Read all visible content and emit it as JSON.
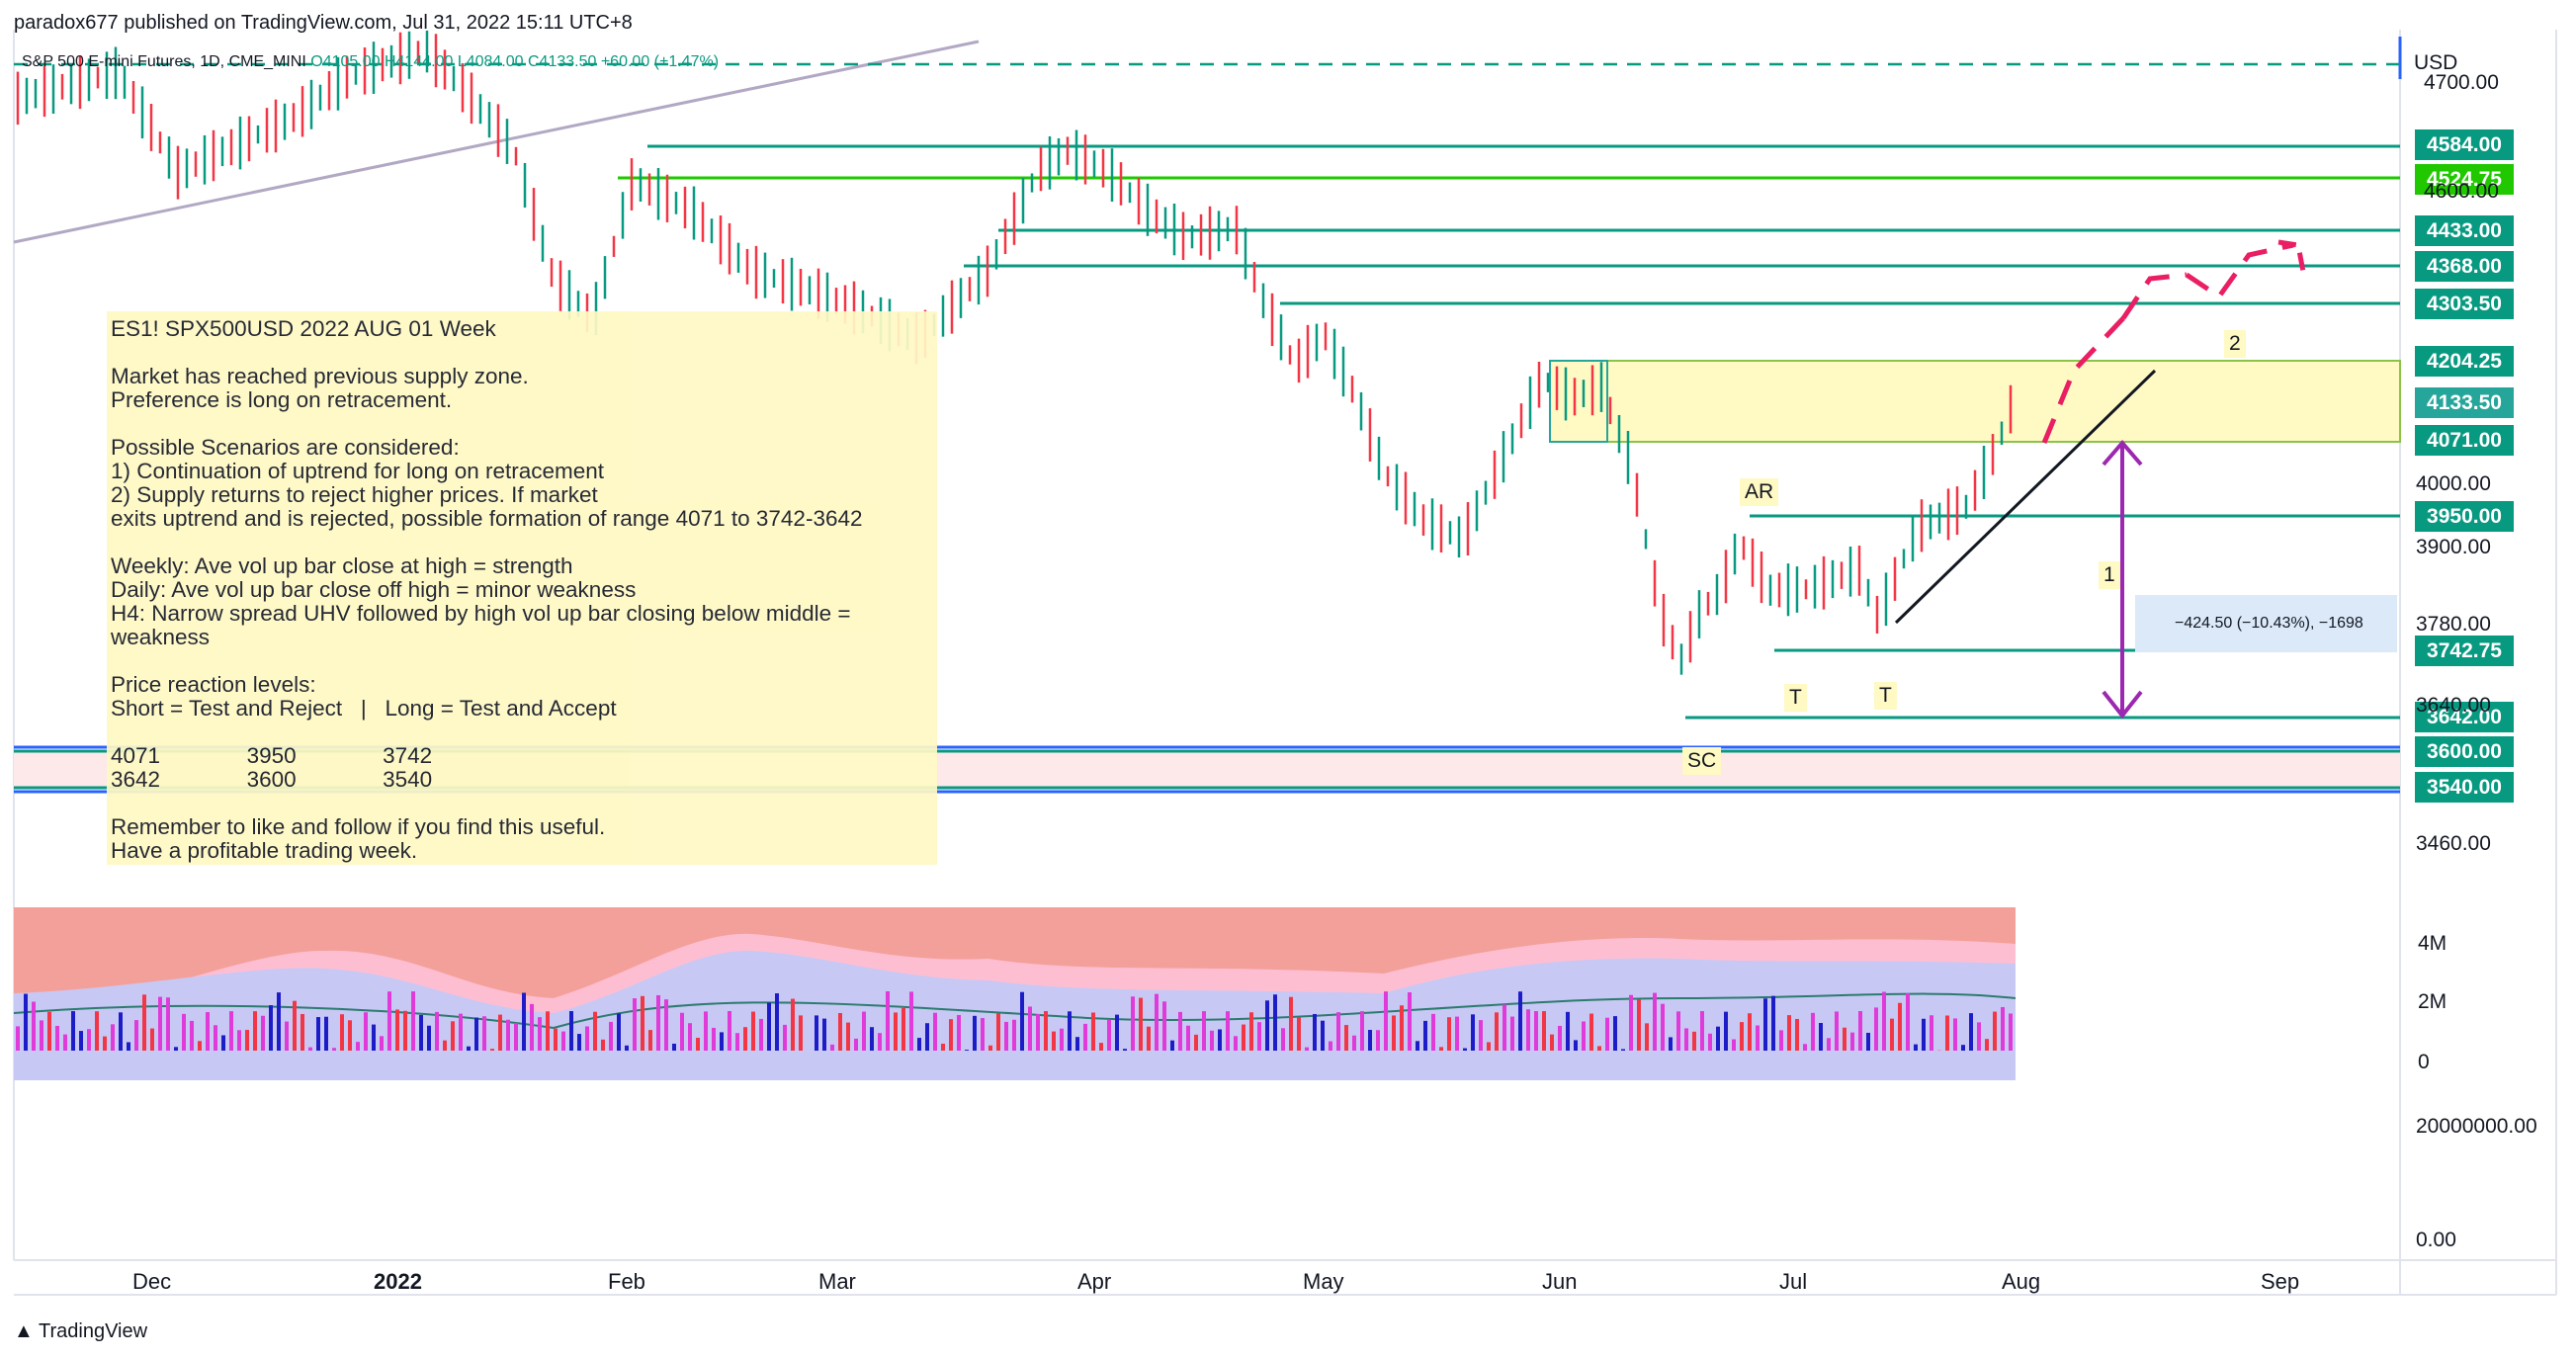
{
  "header": {
    "published": "paradox677 published on TradingView.com, Jul 31, 2022 15:11 UTC+8"
  },
  "symbol": {
    "name": "S&P 500 E-mini Futures, 1D, CME_MINI",
    "ohlc": "O4105.00 H4144.00 L4084.00 C4133.50 +60.00 (+1.47%)"
  },
  "axis": {
    "currency": "USD",
    "price_ticks": [
      "4700.00",
      "4600.00",
      "4000.00",
      "3900.00",
      "3780.00",
      "3640.00",
      "3460.00",
      "4M",
      "2M",
      "0",
      "20000000.00",
      "0.00"
    ],
    "time_labels": [
      "Dec",
      "2022",
      "Feb",
      "Mar",
      "Apr",
      "May",
      "Jun",
      "Jul",
      "Aug",
      "Sep"
    ]
  },
  "price_labels": [
    {
      "text": "4584.00",
      "color": "#089981"
    },
    {
      "text": "4524.75",
      "color": "#21c800"
    },
    {
      "text": "4433.00",
      "color": "#089981"
    },
    {
      "text": "4368.00",
      "color": "#089981"
    },
    {
      "text": "4303.50",
      "color": "#089981"
    },
    {
      "text": "4204.25",
      "color": "#089981"
    },
    {
      "text": "4133.50",
      "color": "#26a69a"
    },
    {
      "text": "4071.00",
      "color": "#089981"
    },
    {
      "text": "3950.00",
      "color": "#089981"
    },
    {
      "text": "3742.75",
      "color": "#089981"
    },
    {
      "text": "3642.00",
      "color": "#089981"
    },
    {
      "text": "3600.00",
      "color": "#089981"
    },
    {
      "text": "3540.00",
      "color": "#089981"
    }
  ],
  "note": {
    "lines": [
      "ES1! SPX500USD 2022 AUG 01 Week",
      "",
      "Market has reached previous supply zone.",
      "Preference is long on retracement.",
      "",
      "Possible Scenarios are considered:",
      "1) Continuation of uptrend for long on retracement",
      "2) Supply returns to reject higher prices. If market",
      "exits uptrend and is rejected, possible formation of range 4071 to 3742-3642",
      "",
      "Weekly: Ave vol up bar close at high = strength",
      "Daily: Ave vol up bar close off high = minor weakness",
      "H4: Narrow spread UHV followed by high vol up bar closing below middle =",
      "weakness",
      "",
      "Price reaction levels:",
      "Short = Test and Reject   |   Long = Test and Accept",
      "",
      "4071              3950              3742",
      "3642              3600              3540",
      "",
      "Remember to like and follow if you find this useful.",
      "Have a profitable trading week."
    ]
  },
  "markers": {
    "ar": "AR",
    "t1": "T",
    "t2": "T",
    "sc": "SC",
    "one": "1",
    "two": "2"
  },
  "measure": "−424.50 (−10.43%), −1698",
  "footer": {
    "brand": "TradingView"
  }
}
